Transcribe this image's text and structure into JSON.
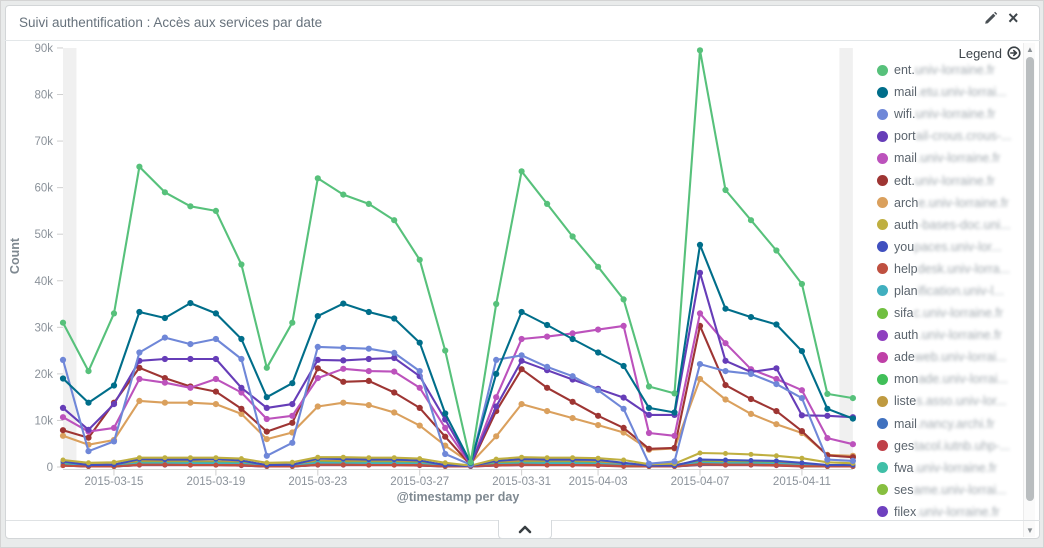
{
  "panel": {
    "title": "Suivi authentification : Accès aux services par date"
  },
  "icons": {
    "close_glyph": "×",
    "scroll_up": "▲",
    "scroll_down": "▼"
  },
  "legend": {
    "header": "Legend",
    "items": [
      {
        "prefix": "ent.",
        "rest": "univ-lorraine.fr",
        "color": "#57c17b",
        "blurred": true
      },
      {
        "prefix": "mail",
        "rest": ".etu.univ-lorrai...",
        "color": "#006e8a",
        "blurred": true
      },
      {
        "prefix": "wifi.",
        "rest": "univ-lorraine.fr",
        "color": "#6f87d8",
        "blurred": true
      },
      {
        "prefix": "port",
        "rest": "ail-crous.crous-...",
        "color": "#663db8",
        "blurred": true
      },
      {
        "prefix": "mail",
        "rest": ".univ-lorraine.fr",
        "color": "#bc52bc",
        "blurred": true
      },
      {
        "prefix": "edt.",
        "rest": "univ-lorraine.fr",
        "color": "#9e3533",
        "blurred": true
      },
      {
        "prefix": "arch",
        "rest": "e.univ-lorraine.fr",
        "color": "#daa05d",
        "blurred": true
      },
      {
        "prefix": "auth",
        "rest": "-bases-doc.uni...",
        "color": "#bfaf40",
        "blurred": true
      },
      {
        "prefix": "you",
        "rest": "paces.univ-lor...",
        "color": "#4050bf",
        "blurred": true
      },
      {
        "prefix": "help",
        "rest": "desk.univ-lorra...",
        "color": "#bf5040",
        "blurred": true
      },
      {
        "prefix": "plan",
        "rest": "ification.univ-l...",
        "color": "#40afbf",
        "blurred": true
      },
      {
        "prefix": "sifa",
        "rest": "c.univ-lorraine.fr",
        "color": "#70bf40",
        "blurred": true
      },
      {
        "prefix": "auth",
        "rest": ".univ-lorraine.fr",
        "color": "#8f40bf",
        "blurred": true
      },
      {
        "prefix": "ade",
        "rest": "web.univ-lorrai...",
        "color": "#bf40a7",
        "blurred": true
      },
      {
        "prefix": "mon",
        "rest": "ade.univ-lorrai...",
        "color": "#40bf58",
        "blurred": true
      },
      {
        "prefix": "liste",
        "rest": "s.asso.univ-lor...",
        "color": "#bf9a40",
        "blurred": true
      },
      {
        "prefix": "mail",
        "rest": ".nancy.archi.fr",
        "color": "#4071bf",
        "blurred": true
      },
      {
        "prefix": "ges",
        "rest": "tacol.iutnb.uhp-...",
        "color": "#bf4048",
        "blurred": true
      },
      {
        "prefix": "fwa",
        "rest": ".univ-lorraine.fr",
        "color": "#40bfa7",
        "blurred": true
      },
      {
        "prefix": "ses",
        "rest": "ame.univ-lorrai...",
        "color": "#87bf40",
        "blurred": true
      },
      {
        "prefix": "filex",
        "rest": ".univ-lorraine.fr",
        "color": "#6e40bf",
        "blurred": true
      }
    ]
  },
  "chart_data": {
    "type": "line",
    "title": "Suivi authentification : Accès aux services par date",
    "xlabel": "@timestamp per day",
    "ylabel": "Count",
    "ylim": [
      0,
      90000
    ],
    "grid": false,
    "legend_position": "right",
    "values_unit": "thousands",
    "y_ticks": [
      "0",
      "10k",
      "20k",
      "30k",
      "40k",
      "50k",
      "60k",
      "70k",
      "80k",
      "90k"
    ],
    "x_ticks": [
      {
        "label": "2015-03-15",
        "day": 2
      },
      {
        "label": "2015-03-19",
        "day": 6
      },
      {
        "label": "2015-03-23",
        "day": 10
      },
      {
        "label": "2015-03-27",
        "day": 14
      },
      {
        "label": "2015-03-31",
        "day": 18
      },
      {
        "label": "2015-04-03",
        "day": 21
      },
      {
        "label": "2015-04-07",
        "day": 25
      },
      {
        "label": "2015-04-11",
        "day": 29
      }
    ],
    "x": [
      "2015-03-13",
      "2015-03-14",
      "2015-03-15",
      "2015-03-16",
      "2015-03-17",
      "2015-03-18",
      "2015-03-19",
      "2015-03-20",
      "2015-03-21",
      "2015-03-22",
      "2015-03-23",
      "2015-03-24",
      "2015-03-25",
      "2015-03-26",
      "2015-03-27",
      "2015-03-28",
      "2015-03-29",
      "2015-03-30",
      "2015-03-31",
      "2015-04-01",
      "2015-04-02",
      "2015-04-03",
      "2015-04-04",
      "2015-04-05",
      "2015-04-06",
      "2015-04-07",
      "2015-04-08",
      "2015-04-09",
      "2015-04-10",
      "2015-04-11",
      "2015-04-12",
      "2015-04-13"
    ],
    "partial_buckets": {
      "first": true,
      "last": true
    },
    "series": [
      {
        "name": "ent.univ-lorraine.fr",
        "color": "#57c17b",
        "values_k": [
          31,
          20.6,
          33,
          64.5,
          59,
          56,
          55,
          43.5,
          21.3,
          31,
          62,
          58.5,
          56.5,
          53,
          44.5,
          25,
          1,
          35,
          63.5,
          56.5,
          49.5,
          43,
          36,
          17.3,
          15.8,
          89.5,
          59.5,
          53,
          46.5,
          39.3,
          15.7,
          14.8
        ]
      },
      {
        "name": "mail.etu.univ-lorraine.fr",
        "color": "#006e8a",
        "values_k": [
          19,
          13.8,
          17.5,
          33.3,
          32,
          35.2,
          33,
          27.5,
          15,
          18,
          32.4,
          35.1,
          33.3,
          31.9,
          26.7,
          11.5,
          0.9,
          20,
          33.3,
          30.5,
          27.5,
          24.6,
          21.7,
          12.7,
          11.7,
          47.7,
          34,
          32.2,
          30.6,
          24.9,
          12.5,
          10.4
        ]
      },
      {
        "name": "wifi.univ-lorraine.fr",
        "color": "#6f87d8",
        "values_k": [
          23,
          3.4,
          5.5,
          24.6,
          27.8,
          26.4,
          27.5,
          23.2,
          2.4,
          5.2,
          25.8,
          25.6,
          25.4,
          24.5,
          20.6,
          2.8,
          0.5,
          23,
          24,
          21.5,
          19.5,
          16.5,
          12.5,
          0.7,
          1.2,
          22.1,
          20.6,
          20,
          17.8,
          14.8,
          1.6,
          1.3
        ]
      },
      {
        "name": "portail-crous.crous-...",
        "color": "#663db8",
        "values_k": [
          12.7,
          8,
          13.5,
          22.8,
          23.2,
          23.2,
          23.2,
          17,
          12.7,
          13.5,
          23,
          22.9,
          23.2,
          23.4,
          19.5,
          10.2,
          0.6,
          13,
          22.8,
          20.8,
          18.8,
          16.8,
          14.9,
          11.2,
          11.2,
          41.7,
          22.8,
          20.4,
          21.2,
          11.1,
          11,
          10.7
        ]
      },
      {
        "name": "mail.univ-lorraine.fr",
        "color": "#bc52bc",
        "values_k": [
          10.7,
          7.6,
          8.4,
          18.9,
          18.1,
          17,
          18.9,
          16,
          10.3,
          11,
          19.1,
          21.1,
          20.6,
          20.5,
          17,
          8.4,
          0.5,
          15,
          27.5,
          28,
          28.7,
          29.5,
          30.3,
          7.3,
          6.7,
          33,
          26.6,
          21,
          18.9,
          16.5,
          6.2,
          4.9
        ]
      },
      {
        "name": "edt.univ-lorraine.fr",
        "color": "#9e3533",
        "values_k": [
          7.9,
          6.3,
          13.8,
          21.3,
          19.1,
          17.3,
          16.2,
          12.5,
          7.6,
          9.5,
          21.2,
          18.3,
          18.5,
          16,
          12.7,
          6.5,
          0.4,
          12,
          21,
          17,
          14,
          11,
          8.4,
          3.9,
          4.1,
          30.3,
          17.6,
          14.6,
          12,
          7.7,
          2.5,
          2.1
        ]
      },
      {
        "name": "arche.univ-lorraine.fr",
        "color": "#daa05d",
        "values_k": [
          6.7,
          4.8,
          5.8,
          14.2,
          13.8,
          13.8,
          13.5,
          11.4,
          6,
          7.4,
          13,
          13.8,
          13.3,
          11.7,
          8.9,
          4.6,
          0.8,
          6.6,
          13.5,
          12,
          10.5,
          9,
          7.4,
          3.7,
          4,
          18.9,
          14.5,
          11.4,
          9.2,
          7.3,
          2.6,
          2.4
        ]
      },
      {
        "name": "auth-bases-doc.uni...",
        "color": "#bfaf40",
        "values_k": [
          1.5,
          0.9,
          1,
          2,
          2,
          2,
          2,
          1.8,
          0.9,
          1,
          2.1,
          2.1,
          2,
          2,
          1.8,
          0.9,
          0.3,
          1.7,
          2.1,
          2,
          2,
          1.9,
          1.5,
          0.6,
          0.7,
          3,
          2.9,
          2.7,
          2.4,
          1.9,
          1,
          0.8
        ]
      },
      {
        "name": "youpaces.univ-lor...",
        "color": "#4050bf",
        "values_k": [
          1.2,
          0.4,
          0.5,
          1.7,
          1.6,
          1.6,
          1.7,
          1.4,
          0.4,
          0.5,
          1.8,
          1.7,
          1.6,
          1.6,
          1.4,
          0.4,
          0.2,
          1.3,
          1.7,
          1.6,
          1.6,
          1.5,
          0.9,
          0.3,
          0.3,
          1.6,
          1.5,
          1.4,
          1.3,
          0.9,
          0.4,
          0.4
        ]
      },
      {
        "name": "helpdesk.univ-lorra...",
        "color": "#bf5040",
        "values_k": [
          0.3,
          0.1,
          0.1,
          0.5,
          0.5,
          0.4,
          0.4,
          0.4,
          0.1,
          0.1,
          0.5,
          0.5,
          0.4,
          0.4,
          0.4,
          0.1,
          0.1,
          0.4,
          0.5,
          0.4,
          0.4,
          0.4,
          0.2,
          0.1,
          0.1,
          0.6,
          0.5,
          0.5,
          0.4,
          0.2,
          0.1,
          0.1
        ]
      },
      {
        "name": "planification.univ-l...",
        "color": "#40afbf",
        "values_k": [
          0.6,
          0.2,
          0.2,
          0.8,
          0.8,
          0.8,
          0.8,
          0.7,
          0.2,
          0.2,
          0.9,
          0.8,
          0.8,
          0.8,
          0.7,
          0.2,
          0.1,
          0.6,
          0.8,
          0.8,
          0.8,
          0.7,
          0.4,
          0.2,
          0.2,
          0.9,
          0.8,
          0.8,
          0.7,
          0.4,
          0.2,
          0.2
        ]
      },
      {
        "name": "sifac.univ-lorraine.fr",
        "color": "#70bf40",
        "values_k": [
          0.7,
          0.1,
          0.1,
          0.9,
          0.9,
          0.9,
          0.9,
          0.8,
          0.1,
          0.1,
          1,
          0.9,
          0.9,
          0.9,
          0.8,
          0.1,
          0.1,
          0.7,
          0.9,
          0.9,
          0.9,
          0.8,
          0.2,
          0.1,
          0.1,
          1,
          0.9,
          0.9,
          0.8,
          0.2,
          0.1,
          0.1
        ]
      },
      {
        "name": "auth.univ-lorraine.fr",
        "color": "#8f40bf",
        "values_k": [
          0.5,
          0.2,
          0.2,
          0.7,
          0.7,
          0.7,
          0.7,
          0.6,
          0.2,
          0.2,
          0.7,
          0.7,
          0.7,
          0.7,
          0.6,
          0.2,
          0.1,
          0.5,
          0.7,
          0.7,
          0.7,
          0.6,
          0.3,
          0.2,
          0.2,
          0.8,
          0.7,
          0.7,
          0.6,
          0.3,
          0.2,
          0.2
        ]
      },
      {
        "name": "adeweb.univ-lorrai...",
        "color": "#bf40a7",
        "values_k": [
          0.5,
          0.1,
          0.2,
          0.6,
          0.6,
          0.6,
          0.6,
          0.5,
          0.1,
          0.2,
          0.6,
          0.6,
          0.6,
          0.6,
          0.5,
          0.1,
          0.1,
          0.5,
          0.6,
          0.6,
          0.6,
          0.5,
          0.2,
          0.1,
          0.1,
          0.7,
          0.6,
          0.6,
          0.5,
          0.2,
          0.1,
          0.1
        ]
      },
      {
        "name": "monade.univ-lorrai...",
        "color": "#40bf58",
        "values_k": [
          0.5,
          0.3,
          0.3,
          0.6,
          0.6,
          0.6,
          0.6,
          0.5,
          0.3,
          0.3,
          0.6,
          0.6,
          0.6,
          0.6,
          0.5,
          0.3,
          0.2,
          0.5,
          0.6,
          0.6,
          0.6,
          0.5,
          0.4,
          0.2,
          0.3,
          0.7,
          0.6,
          0.6,
          0.5,
          0.4,
          0.3,
          0.3
        ]
      },
      {
        "name": "listes.asso.univ-lor...",
        "color": "#bf9a40",
        "values_k": [
          1,
          0.5,
          0.5,
          1.3,
          1.3,
          1.2,
          1.2,
          1.1,
          0.5,
          0.5,
          1.3,
          1.3,
          1.2,
          1.2,
          1.1,
          0.5,
          0.3,
          1,
          1.3,
          1.2,
          1.2,
          1.1,
          0.7,
          0.4,
          0.4,
          1.4,
          1.3,
          1.2,
          1.1,
          0.7,
          0.4,
          0.4
        ]
      },
      {
        "name": "mail.nancy.archi.fr",
        "color": "#4071bf",
        "values_k": [
          0.4,
          0.1,
          0.1,
          0.5,
          0.5,
          0.5,
          0.5,
          0.4,
          0.1,
          0.1,
          0.5,
          0.5,
          0.5,
          0.5,
          0.4,
          0.1,
          0.1,
          0.4,
          0.5,
          0.5,
          0.5,
          0.4,
          0.2,
          0.1,
          0.1,
          0.5,
          0.5,
          0.5,
          0.4,
          0.2,
          0.1,
          0.1
        ]
      },
      {
        "name": "gestacol.iutnb.uhp-...",
        "color": "#bf4048",
        "values_k": [
          0.3,
          0.1,
          0.1,
          0.4,
          0.4,
          0.4,
          0.4,
          0.3,
          0.1,
          0.1,
          0.4,
          0.4,
          0.4,
          0.4,
          0.3,
          0.1,
          0.1,
          0.3,
          0.4,
          0.4,
          0.4,
          0.3,
          0.1,
          0.1,
          0.1,
          0.4,
          0.4,
          0.4,
          0.3,
          0.1,
          0.1,
          0.1
        ]
      },
      {
        "name": "fwa.univ-lorraine.fr",
        "color": "#40bfa7",
        "values_k": [
          0.5,
          0.2,
          0.2,
          0.7,
          0.7,
          0.6,
          0.6,
          0.5,
          0.2,
          0.2,
          0.7,
          0.7,
          0.6,
          0.6,
          0.5,
          0.2,
          0.1,
          0.5,
          0.7,
          0.6,
          0.6,
          0.5,
          0.2,
          0.1,
          0.2,
          0.7,
          0.7,
          0.6,
          0.5,
          0.2,
          0.1,
          0.1
        ]
      },
      {
        "name": "sesame.univ-lorrai...",
        "color": "#87bf40",
        "values_k": [
          0.4,
          0.1,
          0.1,
          0.5,
          0.5,
          0.5,
          0.5,
          0.4,
          0.1,
          0.1,
          0.5,
          0.5,
          0.5,
          0.5,
          0.4,
          0.1,
          0.1,
          0.4,
          0.5,
          0.5,
          0.5,
          0.4,
          0.2,
          0.1,
          0.1,
          0.6,
          0.5,
          0.5,
          0.4,
          0.2,
          0.1,
          0.1
        ]
      },
      {
        "name": "filex.univ-lorraine.fr",
        "color": "#6e40bf",
        "values_k": [
          0.3,
          0.1,
          0.1,
          0.4,
          0.4,
          0.4,
          0.4,
          0.3,
          0.1,
          0.1,
          0.4,
          0.4,
          0.4,
          0.4,
          0.3,
          0.1,
          0.1,
          0.3,
          0.4,
          0.4,
          0.4,
          0.3,
          0.2,
          0.1,
          0.1,
          0.5,
          0.4,
          0.4,
          0.3,
          0.2,
          0.1,
          0.1
        ]
      }
    ]
  }
}
